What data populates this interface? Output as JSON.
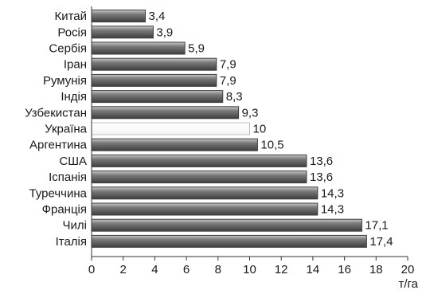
{
  "chart_data": {
    "type": "bar",
    "orientation": "horizontal",
    "categories": [
      "Китай",
      "Росія",
      "Сербія",
      "Іран",
      "Румунія",
      "Індія",
      "Узбекистан",
      "Україна",
      "Аргентина",
      "США",
      "Іспанія",
      "Туреччина",
      "Франція",
      "Чилі",
      "Італія"
    ],
    "values": [
      3.4,
      3.9,
      5.9,
      7.9,
      7.9,
      8.3,
      9.3,
      10,
      10.5,
      13.6,
      13.6,
      14.3,
      14.3,
      17.1,
      17.4
    ],
    "value_labels": [
      "3,4",
      "3,9",
      "5,9",
      "7,9",
      "7,9",
      "8,3",
      "9,3",
      "10",
      "10,5",
      "13,6",
      "13,6",
      "14,3",
      "14,3",
      "17,1",
      "17,4"
    ],
    "highlighted_category": "Україна",
    "xlim": [
      0,
      20
    ],
    "xticks": [
      0,
      2,
      4,
      6,
      8,
      10,
      12,
      14,
      16,
      18,
      20
    ],
    "xlabel": "т/га",
    "ylabel": "",
    "title": "",
    "grid": false,
    "colors": {
      "bar": "#7a7a7a",
      "bar_light": "#c8c8c8",
      "bar_dark": "#3e3e3e",
      "highlight": "#f4f4f4",
      "highlight_edge": "#bdbdbd",
      "axis": "#333333"
    }
  }
}
